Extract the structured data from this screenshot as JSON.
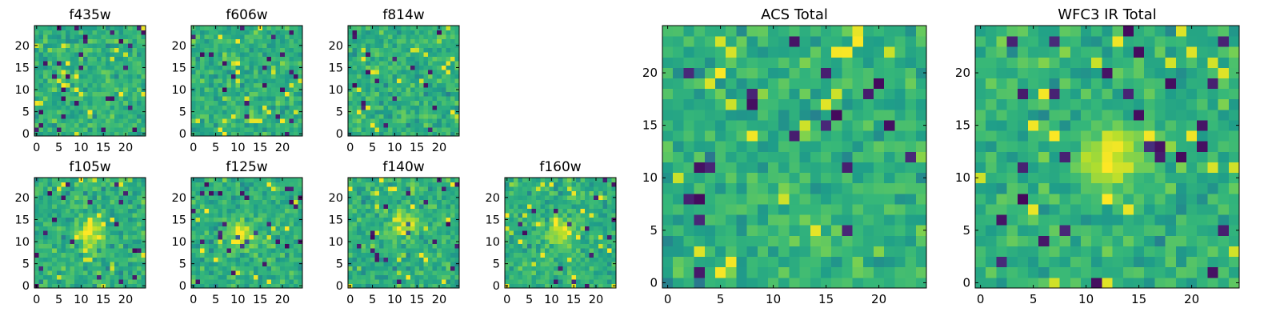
{
  "chart_data": [
    {
      "type": "heatmap",
      "title": "f435w",
      "xticks": [
        "0",
        "5",
        "10",
        "15",
        "20"
      ],
      "yticks": [
        "0",
        "5",
        "10",
        "15",
        "20"
      ],
      "xlim": [
        -0.5,
        24.5
      ],
      "ylim": [
        -0.5,
        24.5
      ],
      "grid_size": 25,
      "colormap": "viridis",
      "pattern": "noise",
      "seed": 11
    },
    {
      "type": "heatmap",
      "title": "f606w",
      "xticks": [
        "0",
        "5",
        "10",
        "15",
        "20"
      ],
      "yticks": [
        "0",
        "5",
        "10",
        "15",
        "20"
      ],
      "xlim": [
        -0.5,
        24.5
      ],
      "ylim": [
        -0.5,
        24.5
      ],
      "grid_size": 25,
      "colormap": "viridis",
      "pattern": "noise",
      "seed": 23
    },
    {
      "type": "heatmap",
      "title": "f814w",
      "xticks": [
        "0",
        "5",
        "10",
        "15",
        "20"
      ],
      "yticks": [
        "0",
        "5",
        "10",
        "15",
        "20"
      ],
      "xlim": [
        -0.5,
        24.5
      ],
      "ylim": [
        -0.5,
        24.5
      ],
      "grid_size": 25,
      "colormap": "viridis",
      "pattern": "noise",
      "seed": 37
    },
    {
      "type": "heatmap",
      "title": "f105w",
      "xticks": [
        "0",
        "5",
        "10",
        "15",
        "20"
      ],
      "yticks": [
        "0",
        "5",
        "10",
        "15",
        "20"
      ],
      "xlim": [
        -0.5,
        24.5
      ],
      "ylim": [
        -0.5,
        24.5
      ],
      "grid_size": 25,
      "colormap": "viridis",
      "pattern": "source",
      "source_center": [
        12,
        12
      ],
      "seed": 41
    },
    {
      "type": "heatmap",
      "title": "f125w",
      "xticks": [
        "0",
        "5",
        "10",
        "15",
        "20"
      ],
      "yticks": [
        "0",
        "5",
        "10",
        "15",
        "20"
      ],
      "xlim": [
        -0.5,
        24.5
      ],
      "ylim": [
        -0.5,
        24.5
      ],
      "grid_size": 25,
      "colormap": "viridis",
      "pattern": "source",
      "source_center": [
        11,
        12
      ],
      "seed": 53
    },
    {
      "type": "heatmap",
      "title": "f140w",
      "xticks": [
        "0",
        "5",
        "10",
        "15",
        "20"
      ],
      "yticks": [
        "0",
        "5",
        "10",
        "15",
        "20"
      ],
      "xlim": [
        -0.5,
        24.5
      ],
      "ylim": [
        -0.5,
        24.5
      ],
      "grid_size": 25,
      "colormap": "viridis",
      "pattern": "source",
      "source_center": [
        12,
        14
      ],
      "seed": 67
    },
    {
      "type": "heatmap",
      "title": "f160w",
      "xticks": [
        "0",
        "5",
        "10",
        "15",
        "20"
      ],
      "yticks": [
        "0",
        "5",
        "10",
        "15",
        "20"
      ],
      "xlim": [
        -0.5,
        24.5
      ],
      "ylim": [
        -0.5,
        24.5
      ],
      "grid_size": 25,
      "colormap": "viridis",
      "pattern": "source",
      "source_center": [
        12,
        12
      ],
      "seed": 79
    },
    {
      "type": "heatmap",
      "title": "ACS Total",
      "xticks": [
        "0",
        "5",
        "10",
        "15",
        "20"
      ],
      "yticks": [
        "0",
        "5",
        "10",
        "15",
        "20"
      ],
      "xlim": [
        -0.5,
        24.5
      ],
      "ylim": [
        -0.5,
        24.5
      ],
      "grid_size": 25,
      "colormap": "viridis",
      "pattern": "noise",
      "seed": 97
    },
    {
      "type": "heatmap",
      "title": "WFC3 IR Total",
      "xticks": [
        "0",
        "5",
        "10",
        "15",
        "20"
      ],
      "yticks": [
        "0",
        "5",
        "10",
        "15",
        "20"
      ],
      "xlim": [
        -0.5,
        24.5
      ],
      "ylim": [
        -0.5,
        24.5
      ],
      "grid_size": 25,
      "colormap": "viridis",
      "pattern": "source",
      "source_center": [
        12,
        12
      ],
      "seed": 113
    }
  ]
}
